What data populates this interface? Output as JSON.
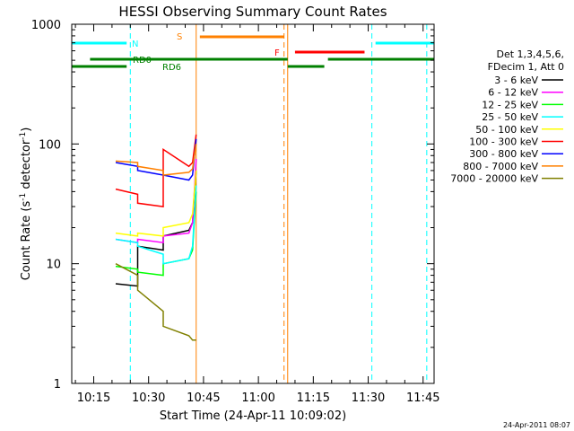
{
  "chart_data": {
    "type": "line",
    "title": "HESSI Observing Summary Count Rates",
    "xlabel": "Start Time (24-Apr-11 10:09:02)",
    "ylabel": "Count Rate (s⁻¹ detector⁻¹)",
    "ylabel_parts": [
      "Count Rate (s",
      "-1",
      " detector",
      "-1",
      ")"
    ],
    "yscale": "log",
    "ylim": [
      1,
      1000
    ],
    "xlim": [
      "10:09",
      "11:48"
    ],
    "x_ticks": [
      "10:15",
      "10:30",
      "10:45",
      "11:00",
      "11:15",
      "11:30",
      "11:45"
    ],
    "y_ticks": [
      "1",
      "10",
      "100",
      "1000"
    ],
    "grid": false,
    "legend_position": "right",
    "legend_header": [
      "Det 1,3,4,5,6,",
      "FDecim 1, Att 0"
    ],
    "timestamp": "24-Apr-2011 08:07",
    "series": [
      {
        "name": "3 - 6 keV",
        "color": "#000000",
        "x": [
          "10:21",
          "10:27",
          "10:27",
          "10:34",
          "10:34",
          "10:41",
          "10:42",
          "10:43"
        ],
        "y": [
          6.8,
          6.5,
          14,
          13,
          17,
          19,
          22,
          60
        ]
      },
      {
        "name": "6 - 12 keV",
        "color": "#ff00ff",
        "x": [
          "10:21",
          "10:27",
          "10:27",
          "10:34",
          "10:34",
          "10:41",
          "10:42",
          "10:43"
        ],
        "y": [
          16,
          15,
          16,
          15,
          17,
          18,
          22,
          75
        ]
      },
      {
        "name": "12 - 25 keV",
        "color": "#00ff00",
        "x": [
          "10:21",
          "10:27",
          "10:27",
          "10:34",
          "10:34",
          "10:41",
          "10:42",
          "10:43"
        ],
        "y": [
          9.5,
          9,
          8.5,
          8,
          10,
          11,
          13,
          40
        ]
      },
      {
        "name": "25 - 50 keV",
        "color": "#00ffff",
        "x": [
          "10:21",
          "10:27",
          "10:27",
          "10:34",
          "10:34",
          "10:41",
          "10:42",
          "10:43"
        ],
        "y": [
          16,
          15,
          14,
          12,
          10,
          11,
          14,
          45
        ]
      },
      {
        "name": "50 - 100 keV",
        "color": "#ffff00",
        "x": [
          "10:21",
          "10:27",
          "10:27",
          "10:34",
          "10:34",
          "10:41",
          "10:42",
          "10:43"
        ],
        "y": [
          18,
          17,
          18,
          17,
          20,
          22,
          26,
          60
        ]
      },
      {
        "name": "100 - 300 keV",
        "color": "#ff0000",
        "x": [
          "10:21",
          "10:27",
          "10:27",
          "10:34",
          "10:34",
          "10:41",
          "10:42",
          "10:43"
        ],
        "y": [
          42,
          38,
          32,
          30,
          90,
          65,
          70,
          120
        ]
      },
      {
        "name": "300 - 800 keV",
        "color": "#0000ff",
        "x": [
          "10:21",
          "10:27",
          "10:27",
          "10:34",
          "10:34",
          "10:41",
          "10:42",
          "10:43"
        ],
        "y": [
          70,
          65,
          60,
          55,
          55,
          50,
          55,
          110
        ]
      },
      {
        "name": "800 - 7000 keV",
        "color": "#ff8000",
        "x": [
          "10:21",
          "10:27",
          "10:27",
          "10:34",
          "10:34",
          "10:41",
          "10:42",
          "10:43"
        ],
        "y": [
          72,
          70,
          65,
          60,
          55,
          58,
          62,
          100
        ]
      },
      {
        "name": "7000 - 20000 keV",
        "color": "#808000",
        "x": [
          "10:21",
          "10:27",
          "10:27",
          "10:34",
          "10:34",
          "10:41",
          "10:42",
          "10:43"
        ],
        "y": [
          10,
          8,
          6,
          4,
          3,
          2.5,
          2.3,
          2.3
        ]
      }
    ],
    "annotations": [
      {
        "label": "N",
        "color": "#00ffff"
      },
      {
        "label": "RD0",
        "color": "#008000"
      },
      {
        "label": "RD6",
        "color": "#008000"
      },
      {
        "label": "S",
        "color": "#ff8000"
      },
      {
        "label": "F",
        "color": "#ff0000"
      }
    ]
  }
}
